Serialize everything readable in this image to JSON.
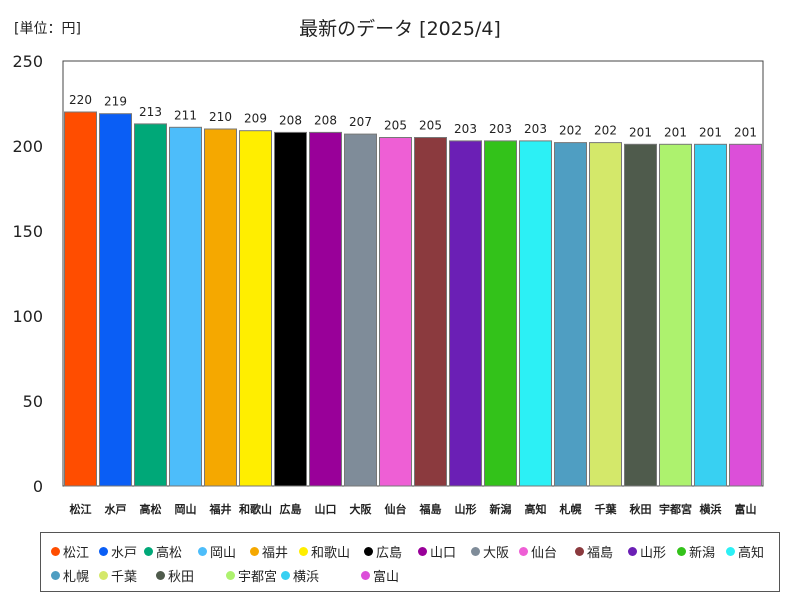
{
  "header": {
    "unit": "[単位：円]",
    "title": "最新のデータ [2025/4]"
  },
  "chart_data": {
    "type": "bar",
    "title": "最新のデータ [2025/4]",
    "unit": "[単位：円]",
    "categories": [
      "松江",
      "水戸",
      "高松",
      "岡山",
      "福井",
      "和歌山",
      "広島",
      "山口",
      "大阪",
      "仙台",
      "福島",
      "山形",
      "新潟",
      "高知",
      "札幌",
      "千葉",
      "秋田",
      "宇都宮",
      "横浜",
      "富山"
    ],
    "values": [
      220,
      219,
      213,
      211,
      210,
      209,
      208,
      208,
      207,
      205,
      205,
      203,
      203,
      203,
      202,
      202,
      201,
      201,
      201,
      201
    ],
    "colors": [
      "#ff4d00",
      "#0a5ef5",
      "#00a878",
      "#4dbdfa",
      "#f5a800",
      "#ffee00",
      "#000000",
      "#990099",
      "#7f8c99",
      "#ee5fd5",
      "#8b3a3e",
      "#6b1fb5",
      "#33c21a",
      "#2cf0f5",
      "#4f9ec2",
      "#d4e86a",
      "#4f5b4c",
      "#adf26e",
      "#38d0f2",
      "#dc4fd9"
    ],
    "ylim": [
      0,
      250
    ],
    "yticks": [
      0,
      50,
      100,
      150,
      200,
      250
    ],
    "legend_position": "bottom",
    "grid": false
  }
}
